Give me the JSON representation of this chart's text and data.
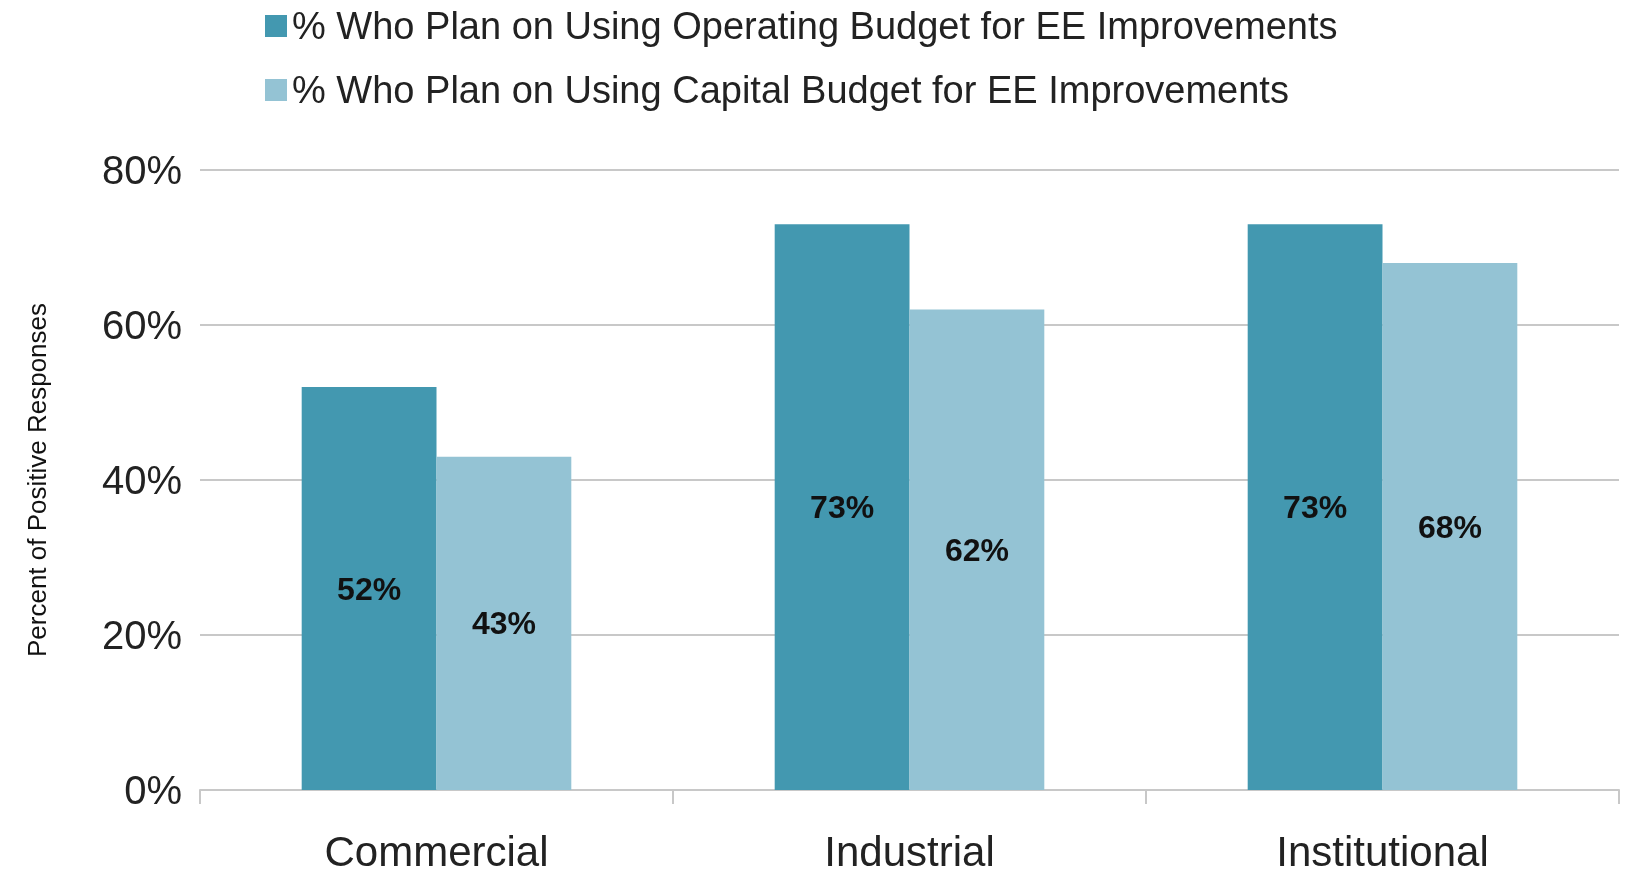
{
  "chart_data": {
    "type": "bar",
    "ylabel": "Percent of Positive Responses",
    "categories": [
      "Commercial",
      "Industrial",
      "Institutional"
    ],
    "series": [
      {
        "name": "% Who Plan on Using Operating Budget for EE Improvements",
        "color": "#4398b0",
        "values": [
          52,
          73,
          73
        ],
        "value_labels": [
          "52%",
          "73%",
          "73%"
        ]
      },
      {
        "name": "% Who Plan on Using Capital Budget for EE Improvements",
        "color": "#94c3d4",
        "values": [
          43,
          62,
          68
        ],
        "value_labels": [
          "43%",
          "62%",
          "68%"
        ]
      }
    ],
    "ylim": [
      0,
      80
    ],
    "yticks": [
      {
        "value": 0,
        "label": "0%"
      },
      {
        "value": 20,
        "label": "20%"
      },
      {
        "value": 40,
        "label": "40%"
      },
      {
        "value": 60,
        "label": "60%"
      },
      {
        "value": 80,
        "label": "80%"
      }
    ],
    "grid": "y",
    "legend": "top left"
  }
}
